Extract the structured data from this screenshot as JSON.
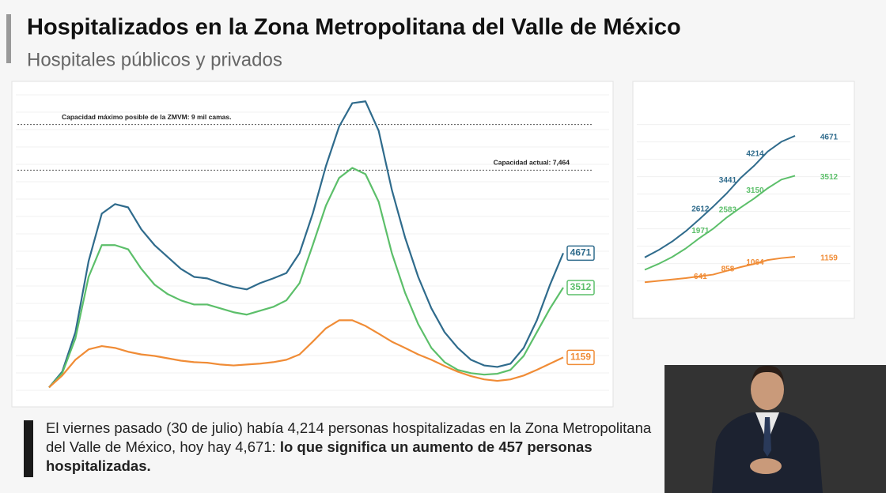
{
  "header": {
    "title": "Hospitalizados en la Zona Metropolitana del Valle de México",
    "subtitle": "Hospitales públicos y privados"
  },
  "chart_data": [
    {
      "type": "line",
      "ylim": [
        0,
        10000
      ],
      "reference_lines": [
        {
          "value": 9000,
          "label": "Capacidad máximo posible de la ZMVM: 9 mil camas."
        },
        {
          "value": 7464,
          "label": "Capacidad actual: 7,464"
        }
      ],
      "series": [
        {
          "name": "blue",
          "color": "#2f6b8c",
          "values": [
            150,
            680,
            2010,
            4400,
            6000,
            6320,
            6210,
            5470,
            4940,
            4540,
            4140,
            3870,
            3820,
            3660,
            3530,
            3450,
            3660,
            3820,
            4000,
            4670,
            6000,
            7600,
            8930,
            9720,
            9780,
            8790,
            6800,
            5200,
            3870,
            2810,
            2010,
            1480,
            1080,
            890,
            840,
            950,
            1480,
            2410,
            3610,
            4671
          ]
        },
        {
          "name": "green",
          "color": "#5cbf6a",
          "values": [
            150,
            630,
            1800,
            3870,
            4940,
            4940,
            4800,
            4140,
            3610,
            3290,
            3080,
            2940,
            2940,
            2810,
            2680,
            2600,
            2730,
            2860,
            3080,
            3660,
            4940,
            6270,
            7200,
            7540,
            7330,
            6400,
            4670,
            3340,
            2280,
            1480,
            1000,
            740,
            630,
            580,
            610,
            740,
            1210,
            2010,
            2810,
            3512
          ]
        },
        {
          "name": "orange",
          "color": "#f08c36",
          "values": [
            150,
            550,
            1080,
            1430,
            1540,
            1480,
            1350,
            1260,
            1210,
            1130,
            1050,
            1000,
            980,
            920,
            890,
            920,
            950,
            1000,
            1080,
            1260,
            1690,
            2140,
            2410,
            2410,
            2220,
            1960,
            1690,
            1480,
            1260,
            1080,
            870,
            680,
            530,
            420,
            370,
            420,
            550,
            740,
            950,
            1159
          ]
        }
      ]
    },
    {
      "type": "line",
      "ylim": [
        0,
        5000
      ],
      "series": [
        {
          "name": "blue",
          "color": "#2f6b8c",
          "values": [
            1140,
            1350,
            1600,
            1900,
            2250,
            2612,
            3000,
            3441,
            3800,
            4214,
            4500,
            4671
          ]
        },
        {
          "name": "green",
          "color": "#5cbf6a",
          "values": [
            780,
            950,
            1150,
            1400,
            1700,
            1971,
            2300,
            2583,
            2850,
            3150,
            3400,
            3512
          ]
        },
        {
          "name": "orange",
          "color": "#f08c36",
          "values": [
            420,
            460,
            500,
            540,
            590,
            641,
            750,
            858,
            950,
            1064,
            1120,
            1159
          ]
        }
      ]
    }
  ],
  "caption": {
    "text": "El viernes pasado (30 de julio) había 4,214 personas hospitalizadas en la Zona Metropolitana del Valle de México, hoy hay 4,671: ",
    "bold": "lo que significa un aumento de 457 personas hospitalizadas."
  }
}
